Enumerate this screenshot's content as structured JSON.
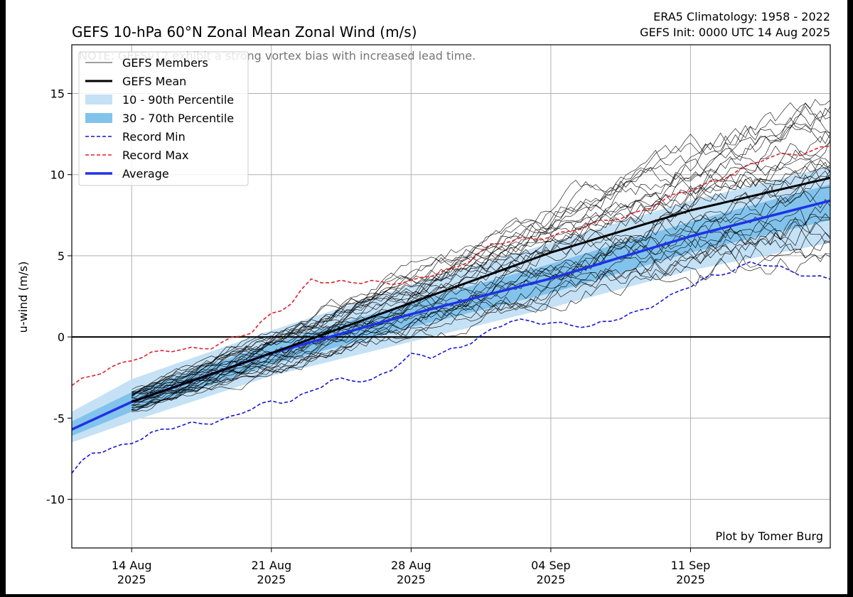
{
  "chart_data": {
    "type": "line",
    "title": "GEFS 10-hPa 60°N Zonal Mean Zonal Wind (m/s)",
    "top_right_line1": "ERA5 Climatology: 1958 - 2022",
    "top_right_line2": "GEFS Init: 0000 UTC 14 Aug 2025",
    "note": "NOTE: GEFSv12 exhibit a strong vortex bias with increased lead time.",
    "credit": "Plot by Tomer Burg",
    "ylabel": "u-wind (m/s)",
    "xlabel": "",
    "xlim": [
      "2025-08-11",
      "2025-09-18"
    ],
    "ylim": [
      -13,
      18
    ],
    "y_ticks": [
      -10,
      -5,
      0,
      5,
      10,
      15
    ],
    "x_ticks": [
      {
        "date": "2025-08-14",
        "label1": "14 Aug",
        "label2": "2025"
      },
      {
        "date": "2025-08-21",
        "label1": "21 Aug",
        "label2": "2025"
      },
      {
        "date": "2025-08-28",
        "label1": "28 Aug",
        "label2": "2025"
      },
      {
        "date": "2025-09-04",
        "label1": "04 Sep",
        "label2": "2025"
      },
      {
        "date": "2025-09-11",
        "label1": "11 Sep",
        "label2": "2025"
      }
    ],
    "grid": true,
    "legend_position": "top-left",
    "legend": [
      {
        "label": "GEFS Members",
        "style": "thin-black-line"
      },
      {
        "label": "GEFS Mean",
        "style": "thick-black-line"
      },
      {
        "label": "10 - 90th Percentile",
        "style": "light-blue-fill"
      },
      {
        "label": "30 - 70th Percentile",
        "style": "blue-fill"
      },
      {
        "label": "Record Min",
        "style": "blue-dashed"
      },
      {
        "label": "Record Max",
        "style": "red-dashed"
      },
      {
        "label": "Average",
        "style": "thick-blue-line"
      }
    ],
    "colors": {
      "members": "#000000",
      "mean": "#000000",
      "band_10_90": "#c5e1f5",
      "band_30_70": "#82c3ec",
      "record_min": "#1515d6",
      "record_max": "#e0202a",
      "average": "#1f32e6",
      "zero_line": "#000000"
    },
    "series": [
      {
        "name": "Average",
        "x": [
          "2025-08-11",
          "2025-08-14",
          "2025-08-21",
          "2025-08-28",
          "2025-09-04",
          "2025-09-11",
          "2025-09-18"
        ],
        "y": [
          -5.7,
          -4.0,
          -1.0,
          1.4,
          3.6,
          6.2,
          8.4
        ]
      },
      {
        "name": "GEFS Mean",
        "x": [
          "2025-08-14",
          "2025-08-21",
          "2025-08-28",
          "2025-09-04",
          "2025-09-11",
          "2025-09-18"
        ],
        "y": [
          -4.0,
          -1.0,
          2.1,
          5.2,
          7.8,
          9.8
        ]
      },
      {
        "name": "Record Max",
        "x": [
          "2025-08-11",
          "2025-08-13",
          "2025-08-14",
          "2025-08-16",
          "2025-08-18",
          "2025-08-20",
          "2025-08-21",
          "2025-08-22",
          "2025-08-23",
          "2025-08-24",
          "2025-08-26",
          "2025-08-28",
          "2025-08-30",
          "2025-09-01",
          "2025-09-04",
          "2025-09-06",
          "2025-09-08",
          "2025-09-11",
          "2025-09-13",
          "2025-09-15",
          "2025-09-18"
        ],
        "y": [
          -3.1,
          -1.8,
          -1.3,
          -0.9,
          -0.5,
          0.2,
          1.4,
          2.2,
          3.6,
          3.2,
          3.5,
          3.3,
          4.2,
          5.6,
          6.3,
          6.8,
          7.6,
          9.0,
          10.1,
          11.0,
          11.8
        ]
      },
      {
        "name": "Record Min",
        "x": [
          "2025-08-11",
          "2025-08-12",
          "2025-08-14",
          "2025-08-17",
          "2025-08-19",
          "2025-08-21",
          "2025-08-22",
          "2025-08-24",
          "2025-08-26",
          "2025-08-28",
          "2025-08-29",
          "2025-08-31",
          "2025-09-02",
          "2025-09-04",
          "2025-09-06",
          "2025-09-08",
          "2025-09-10",
          "2025-09-12",
          "2025-09-14",
          "2025-09-16",
          "2025-09-18"
        ],
        "y": [
          -8.5,
          -7.2,
          -6.4,
          -5.3,
          -5.0,
          -4.0,
          -3.8,
          -2.8,
          -2.6,
          -1.2,
          -1.3,
          -0.2,
          0.9,
          1.0,
          0.5,
          1.5,
          2.4,
          3.8,
          4.5,
          4.1,
          3.6
        ]
      },
      {
        "name": "10 - 90th Percentile",
        "x": [
          "2025-08-11",
          "2025-08-14",
          "2025-08-21",
          "2025-08-28",
          "2025-09-04",
          "2025-09-11",
          "2025-09-18"
        ],
        "lower": [
          -6.5,
          -5.2,
          -2.4,
          -0.3,
          1.8,
          4.1,
          5.8
        ],
        "upper": [
          -4.6,
          -2.6,
          0.4,
          3.2,
          5.8,
          8.4,
          10.5
        ]
      },
      {
        "name": "30 - 70th Percentile",
        "x": [
          "2025-08-11",
          "2025-08-14",
          "2025-08-21",
          "2025-08-28",
          "2025-09-04",
          "2025-09-11",
          "2025-09-18"
        ],
        "lower": [
          -6.1,
          -4.6,
          -1.7,
          0.6,
          2.7,
          5.2,
          7.2
        ],
        "upper": [
          -5.2,
          -3.4,
          -0.4,
          2.1,
          4.5,
          7.1,
          9.4
        ]
      },
      {
        "name": "GEFS Members",
        "start": "2025-08-14",
        "end": "2025-09-18",
        "count": 31,
        "start_range": [
          -4.6,
          -3.3
        ],
        "end_range": [
          5.0,
          14.5
        ]
      }
    ]
  }
}
